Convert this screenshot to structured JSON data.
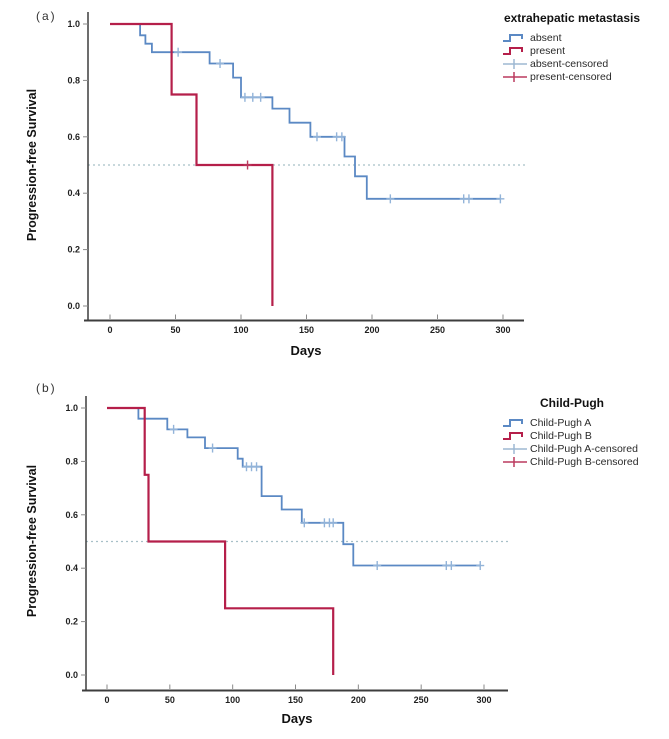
{
  "page": {
    "background": "#ffffff"
  },
  "colors": {
    "axis": "#3d3d3d",
    "tick_mark": "#8a8a8a",
    "tick_text": "#1f1f1f",
    "reference_line": "#a8c0c8",
    "blue_series": "#5b89c4",
    "blue_censor": "#93b4d9",
    "red_series": "#b51f4a",
    "red_censor": "#bb3a5f"
  },
  "chart_data": [
    {
      "type": "line",
      "variant": "kaplan-meier-step",
      "panel_label": "(a)",
      "xlabel": "Days",
      "ylabel": "Progression-free Survival",
      "xticks": [
        0,
        50,
        100,
        150,
        200,
        250,
        300
      ],
      "yticks": [
        0.0,
        0.2,
        0.4,
        0.6,
        0.8,
        1.0
      ],
      "xlim": [
        0,
        300
      ],
      "ylim": [
        0.0,
        1.0
      ],
      "grid": false,
      "reference_line_y": 0.5,
      "legend": {
        "title": "extrahepatic metastasis",
        "position": "top-right",
        "items": [
          {
            "label": "absent",
            "glyph": "step",
            "color": "#5b89c4"
          },
          {
            "label": "present",
            "glyph": "step",
            "color": "#b51f4a"
          },
          {
            "label": "absent-censored",
            "glyph": "plus",
            "color": "#9db8d2"
          },
          {
            "label": "present-censored",
            "glyph": "plus",
            "color": "#bb3a5f"
          }
        ]
      },
      "series": [
        {
          "name": "absent",
          "color": "#5b89c4",
          "censor_color": "#93b4d9",
          "width": 1.8,
          "steps": [
            [
              0,
              1.0
            ],
            [
              23,
              0.96
            ],
            [
              27,
              0.93
            ],
            [
              32,
              0.9
            ],
            [
              76,
              0.86
            ],
            [
              94,
              0.81
            ],
            [
              100,
              0.74
            ],
            [
              124,
              0.7
            ],
            [
              137,
              0.65
            ],
            [
              153,
              0.6
            ],
            [
              179,
              0.53
            ],
            [
              187,
              0.46
            ],
            [
              196,
              0.38
            ],
            [
              298,
              0.38
            ]
          ],
          "censored": [
            [
              52,
              0.9
            ],
            [
              84,
              0.86
            ],
            [
              103,
              0.74
            ],
            [
              109,
              0.74
            ],
            [
              115,
              0.74
            ],
            [
              158,
              0.6
            ],
            [
              173,
              0.6
            ],
            [
              177,
              0.6
            ],
            [
              214,
              0.38
            ],
            [
              270,
              0.38
            ],
            [
              274,
              0.38
            ],
            [
              298,
              0.38
            ]
          ]
        },
        {
          "name": "present",
          "color": "#b51f4a",
          "censor_color": "#bb3a5f",
          "width": 2.2,
          "steps": [
            [
              0,
              1.0
            ],
            [
              47,
              0.75
            ],
            [
              66,
              0.5
            ],
            [
              124,
              0.0
            ]
          ],
          "censored": [
            [
              105,
              0.5
            ]
          ]
        }
      ]
    },
    {
      "type": "line",
      "variant": "kaplan-meier-step",
      "panel_label": "(b)",
      "xlabel": "Days",
      "ylabel": "Progression-free Survival",
      "xticks": [
        0,
        50,
        100,
        150,
        200,
        250,
        300
      ],
      "yticks": [
        0.0,
        0.2,
        0.4,
        0.6,
        0.8,
        1.0
      ],
      "xlim": [
        0,
        300
      ],
      "ylim": [
        0.0,
        1.0
      ],
      "grid": false,
      "reference_line_y": 0.5,
      "legend": {
        "title": "Child-Pugh",
        "position": "top-right",
        "items": [
          {
            "label": "Child-Pugh A",
            "glyph": "step",
            "color": "#5b89c4"
          },
          {
            "label": "Child-Pugh B",
            "glyph": "step",
            "color": "#b51f4a"
          },
          {
            "label": "Child-Pugh A-censored",
            "glyph": "plus",
            "color": "#9db8d2"
          },
          {
            "label": "Child-Pugh B-censored",
            "glyph": "plus",
            "color": "#bb3a5f"
          }
        ]
      },
      "series": [
        {
          "name": "Child-Pugh A",
          "color": "#5b89c4",
          "censor_color": "#93b4d9",
          "width": 1.8,
          "steps": [
            [
              0,
              1.0
            ],
            [
              25,
              0.96
            ],
            [
              48,
              0.92
            ],
            [
              64,
              0.89
            ],
            [
              78,
              0.85
            ],
            [
              104,
              0.81
            ],
            [
              108,
              0.78
            ],
            [
              123,
              0.67
            ],
            [
              139,
              0.62
            ],
            [
              155,
              0.57
            ],
            [
              188,
              0.49
            ],
            [
              196,
              0.41
            ],
            [
              297,
              0.41
            ]
          ],
          "censored": [
            [
              53,
              0.92
            ],
            [
              84,
              0.85
            ],
            [
              111,
              0.78
            ],
            [
              115,
              0.78
            ],
            [
              119,
              0.78
            ],
            [
              157,
              0.57
            ],
            [
              173,
              0.57
            ],
            [
              177,
              0.57
            ],
            [
              180,
              0.57
            ],
            [
              215,
              0.41
            ],
            [
              270,
              0.41
            ],
            [
              274,
              0.41
            ],
            [
              297,
              0.41
            ]
          ]
        },
        {
          "name": "Child-Pugh B",
          "color": "#b51f4a",
          "censor_color": "#bb3a5f",
          "width": 2.2,
          "steps": [
            [
              0,
              1.0
            ],
            [
              30,
              0.75
            ],
            [
              33,
              0.5
            ],
            [
              94,
              0.25
            ],
            [
              180,
              0.0
            ]
          ],
          "censored": []
        }
      ]
    }
  ]
}
